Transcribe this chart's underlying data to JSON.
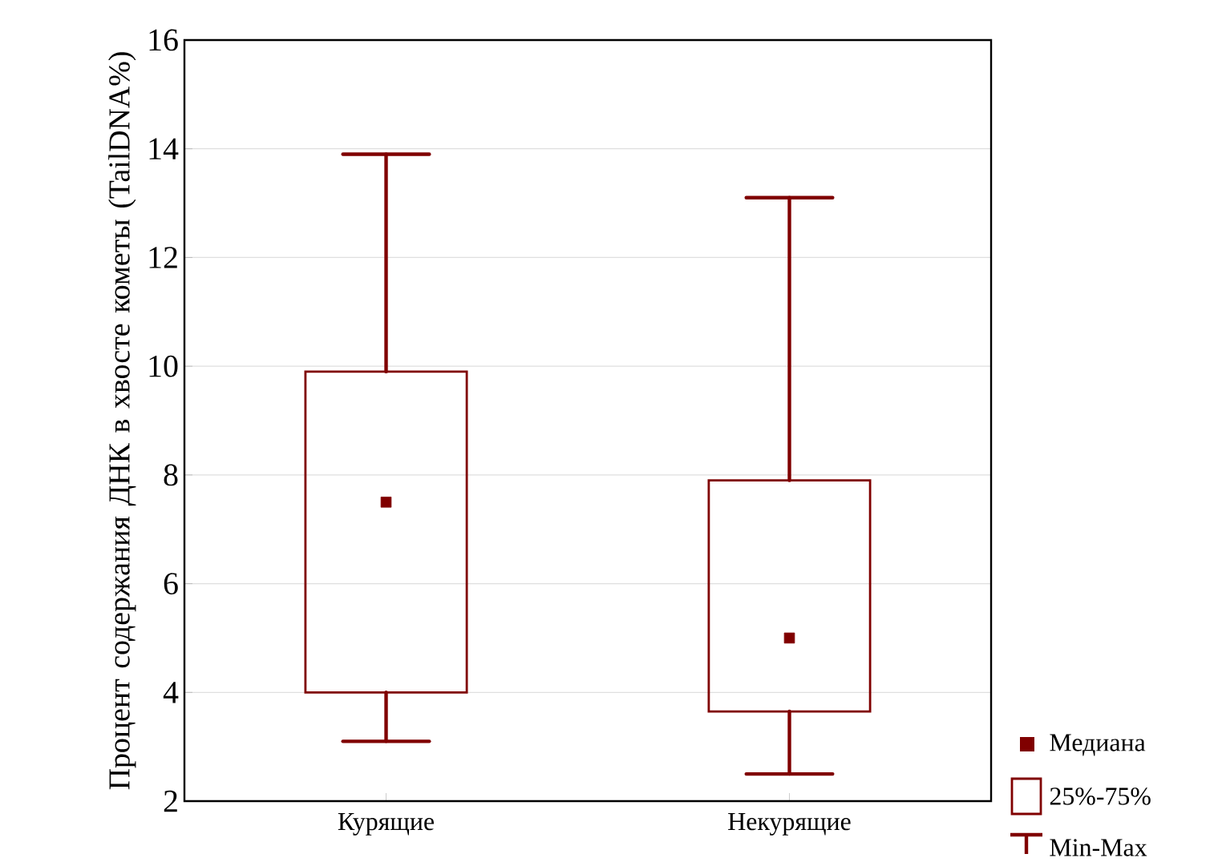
{
  "chart_data": {
    "type": "box",
    "ylabel": "Процент содержания ДНК в хвосте кометы (TailDNA%)",
    "categories": [
      "Курящие",
      "Некурящие"
    ],
    "boxes": [
      {
        "low": 3.1,
        "q1": 4.0,
        "median": 7.5,
        "q3": 9.9,
        "high": 13.9
      },
      {
        "low": 2.5,
        "q1": 3.65,
        "median": 5.0,
        "q3": 7.9,
        "high": 13.1
      }
    ],
    "color": "#800000",
    "ylim": [
      2,
      16
    ],
    "yticks": [
      2,
      4,
      6,
      8,
      10,
      12,
      14,
      16
    ],
    "grid": "y",
    "marker": "square",
    "annotations": [
      "Медиана",
      "25%-75%",
      "Min-Max"
    ]
  }
}
